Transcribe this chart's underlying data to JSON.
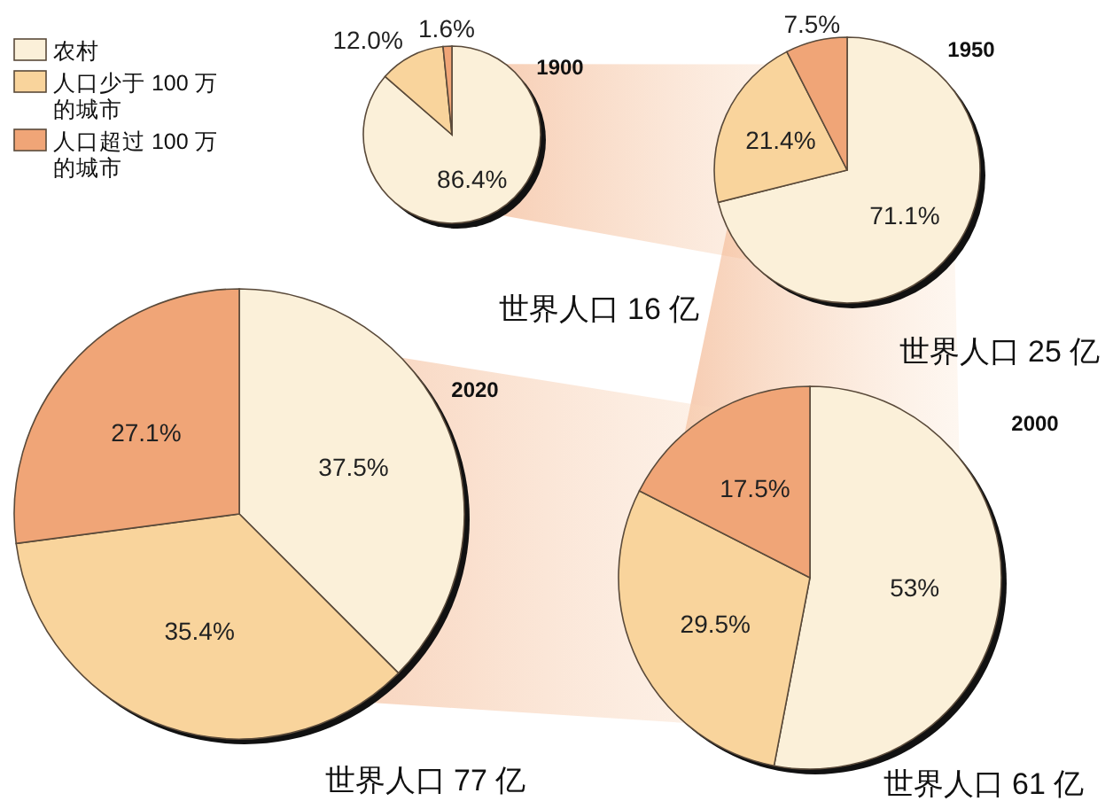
{
  "chart_data": [
    {
      "type": "pie",
      "title": "1900",
      "categories": [
        "农村",
        "人口少于 100 万的城市",
        "人口超过 100 万的城市"
      ],
      "values": [
        86.4,
        12.0,
        1.6
      ],
      "value_labels": [
        "86.4%",
        "12.0%",
        "1.6%"
      ],
      "colors": [
        "#fbf0d9",
        "#f9d49c",
        "#f0a577"
      ],
      "annotations": [
        "世界人口 16 亿"
      ],
      "legend": "left"
    },
    {
      "type": "pie",
      "title": "1950",
      "categories": [
        null,
        null,
        null
      ],
      "values": [
        71.1,
        21.4,
        7.5
      ],
      "value_labels": [
        "71.1%",
        "21.4%",
        "7.5%"
      ],
      "colors": [
        "#fbf0d9",
        "#f9d49c",
        "#f0a577"
      ],
      "annotations": [
        "世界人口 25 亿"
      ]
    },
    {
      "type": "pie",
      "title": "2020",
      "categories": [
        null,
        null,
        null
      ],
      "values": [
        37.5,
        35.4,
        27.1
      ],
      "value_labels": [
        "37.5%",
        "35.4%",
        "27.1%"
      ],
      "colors": [
        "#fbf0d9",
        "#f9d49c",
        "#f0a577"
      ],
      "annotations": [
        "世界人口 77 亿"
      ]
    },
    {
      "type": "pie",
      "title": "2000",
      "categories": [
        null,
        null,
        null
      ],
      "values": [
        53,
        29.5,
        17.5
      ],
      "value_labels": [
        "53%",
        "29.5%",
        "17.5%"
      ],
      "colors": [
        "#fbf0d9",
        "#f9d49c",
        "#f0a577"
      ],
      "annotations": [
        "世界人口 61 亿"
      ]
    }
  ]
}
